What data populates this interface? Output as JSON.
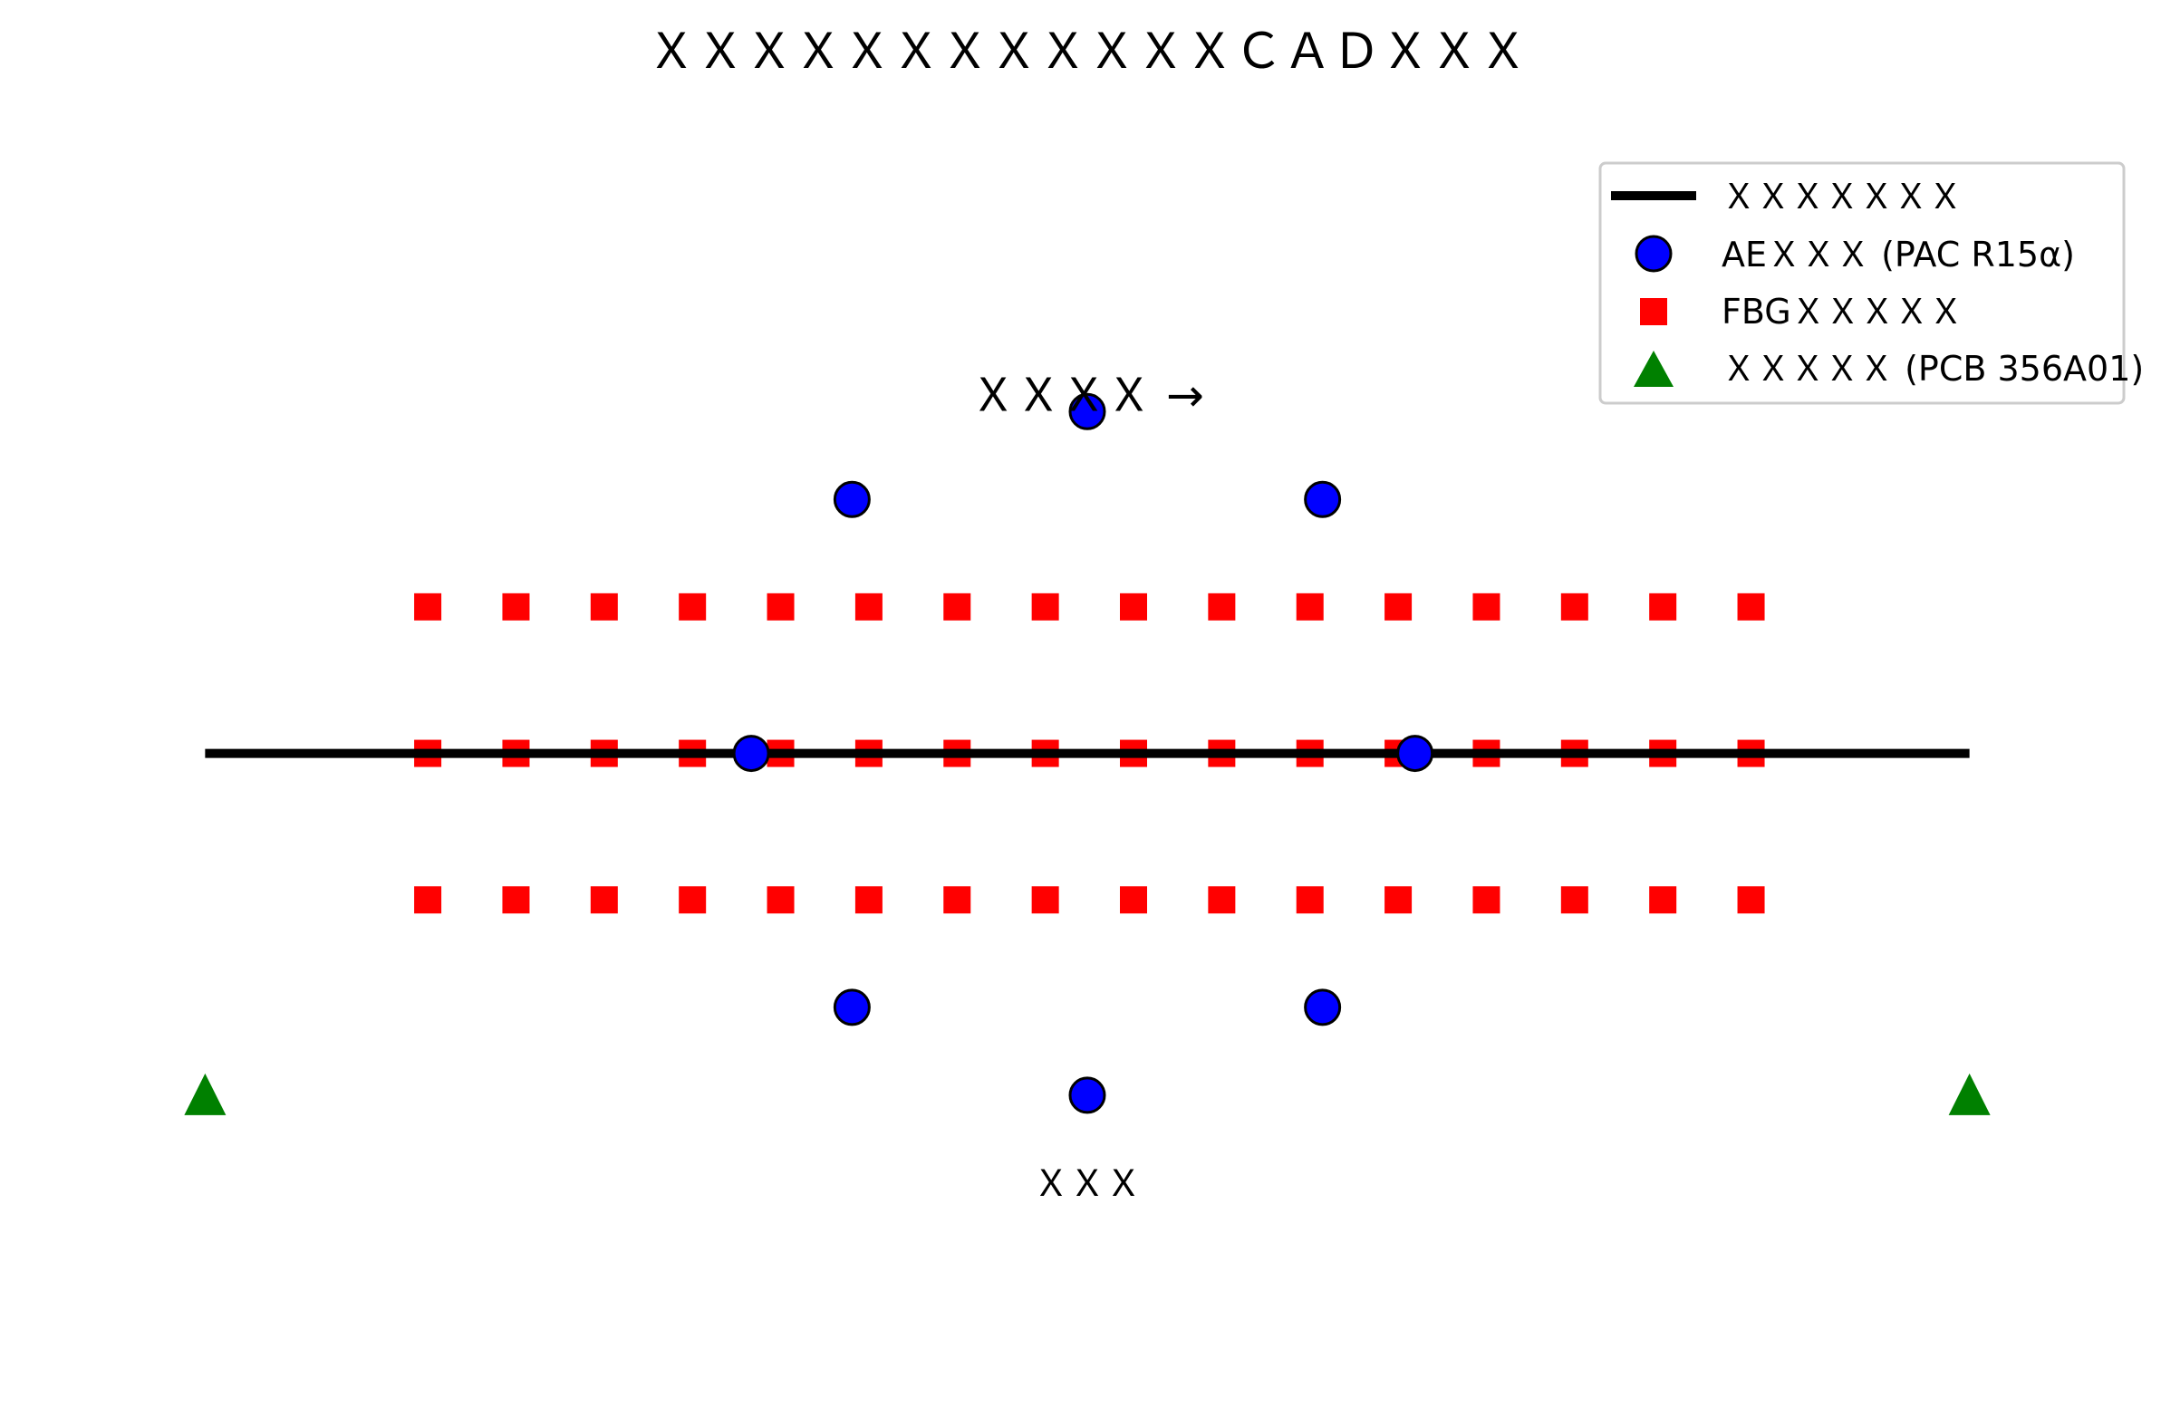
{
  "title": "ＸＸＸＸＸＸＸＸＸＸＸＸＣＡＤＸＸＸ",
  "chart_data": {
    "type": "scatter",
    "title": "ＸＸＸＸＸＸＸＸＸＸＸＸＣＡＤＸＸＸ",
    "xlabel": "",
    "ylabel": "",
    "axes_visible": false,
    "xlim": [
      -11,
      11
    ],
    "ylim": [
      -6.2,
      6.6
    ],
    "grid": false,
    "legend_position": "top-right",
    "annotations": [
      {
        "name": "direction-label",
        "text": "ＸＸＸＸ →",
        "x": 0,
        "y": 3.6
      },
      {
        "name": "bottom-label",
        "text": "ＸＸＸ",
        "x": 0,
        "y": -4.4
      }
    ],
    "series": [
      {
        "name": "ＸＸＸＸＸＸＸ",
        "kind": "line",
        "color": "#000000",
        "x": [
          -10.5,
          10.5
        ],
        "y": [
          0,
          0
        ]
      },
      {
        "name": "AEＸＸＸ (PAC R15α)",
        "kind": "circle",
        "color": "#0000ff",
        "x": [
          0,
          -2.8,
          2.8,
          -4,
          3.9,
          -2.8,
          2.8,
          0
        ],
        "y": [
          3.5,
          2.6,
          2.6,
          0,
          0,
          -2.6,
          -2.6,
          -3.5
        ]
      },
      {
        "name": "FBGＸＸＸＸＸ",
        "kind": "square",
        "color": "#ff0000",
        "x_grid": [
          -7.85,
          -6.8,
          -5.75,
          -4.7,
          -3.65,
          -2.6,
          -1.55,
          -0.5,
          0.55,
          1.6,
          2.65,
          3.7,
          4.75,
          5.8,
          6.85,
          7.9
        ],
        "y_grid": [
          1.5,
          0,
          -1.5
        ]
      },
      {
        "name": "ＸＸＸＸＸ (PCB 356A01)",
        "kind": "triangle",
        "color": "#008000",
        "x": [
          -10.5,
          10.5
        ],
        "y": [
          -3.5,
          -3.5
        ]
      }
    ]
  }
}
